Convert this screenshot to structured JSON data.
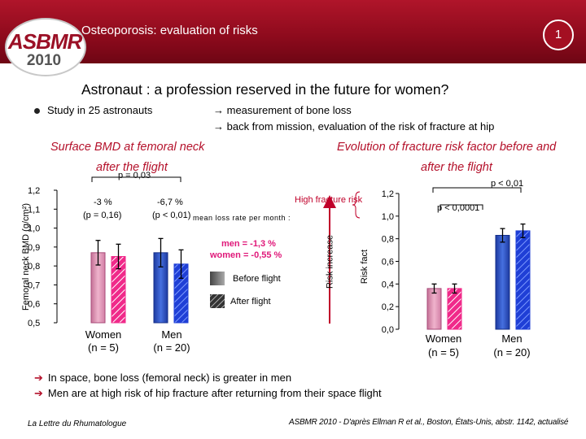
{
  "header": {
    "logo_text": "ASBMR",
    "logo_year": "2010",
    "title": "Osteoporosis: evaluation of risks",
    "page_number": "1"
  },
  "main": {
    "title": "Astronaut : a profession reserved in the future for women?",
    "bullet": "Study in 25 astronauts",
    "arrow_lines": [
      "→ measurement of bone loss",
      "→ back from mission, evaluation of the risk of fracture at hip"
    ]
  },
  "left_section": {
    "title_line1": "Surface BMD at femoral neck",
    "title_line2": "after the flight",
    "y_axis_label": "Femoral neck BMD (g/cm²)",
    "p_top": "p = 0,03",
    "women_change": "-3 %",
    "women_p": "(p = 0,16)",
    "men_change": "-6,7 %",
    "men_p": "(p < 0,01)",
    "mean_label": "mean loss rate per month :",
    "men_rate": "men = -1,3 %",
    "women_rate": "women = -0,55 %",
    "legend_before": "Before flight",
    "legend_after": "After flight",
    "category_women": "Women",
    "category_women_n": "(n = 5)",
    "category_men": "Men",
    "category_men_n": "(n = 20)"
  },
  "right_section": {
    "title_line1": "Evolution of fracture risk factor before and",
    "title_line2": "after the flight",
    "high_risk_label": "High fracture risk",
    "risk_increase_label": "Risk increase",
    "y_axis_label": "Risk fact",
    "p_top": "p < 0,01",
    "p_men": "p < 0,0001",
    "category_women": "Women",
    "category_women_n": "(n = 5)",
    "category_men": "Men",
    "category_men_n": "(n = 20)"
  },
  "chart_data": [
    {
      "type": "bar",
      "title": "Surface BMD at femoral neck after the flight",
      "ylabel": "Femoral neck BMD (g/cm²)",
      "ylim": [
        0.5,
        1.2
      ],
      "y_ticks": [
        "1,2",
        "1,1",
        "1,0",
        "0,9",
        "0,8",
        "0,7",
        "0,6",
        "0,5"
      ],
      "categories": [
        "Women (n = 5)",
        "Men (n = 20)"
      ],
      "series": [
        {
          "name": "Before flight",
          "values": [
            0.87,
            0.87
          ],
          "errors": [
            0.065,
            0.075
          ]
        },
        {
          "name": "After flight",
          "values": [
            0.85,
            0.81
          ],
          "errors": [
            0.065,
            0.075
          ]
        }
      ]
    },
    {
      "type": "bar",
      "title": "Evolution of fracture risk factor before and after the flight",
      "ylabel": "Risk fact",
      "ylim": [
        0.0,
        1.2
      ],
      "y_ticks": [
        "1,2",
        "1,0",
        "0,8",
        "0,6",
        "0,4",
        "0,2",
        "0,0"
      ],
      "categories": [
        "Women (n = 5)",
        "Men (n = 20)"
      ],
      "series": [
        {
          "name": "Before flight",
          "values": [
            0.36,
            0.83
          ],
          "errors": [
            0.04,
            0.06
          ]
        },
        {
          "name": "After flight",
          "values": [
            0.36,
            0.87
          ],
          "errors": [
            0.04,
            0.06
          ]
        }
      ]
    }
  ],
  "colors": {
    "banner": "#9b1026",
    "accent_red": "#b4102a",
    "women_before": "#e7a1c0",
    "women_after": "#f02a8a",
    "men_before": "#2f55c6",
    "men_after": "#1f3fd6"
  },
  "conclusions": [
    "In space, bone loss (femoral neck) is greater in men",
    "Men are at high risk of hip fracture after returning from their space flight"
  ],
  "footer": {
    "left": "La Lettre du Rhumatologue",
    "right": "ASBMR 2010 - D'après Ellman R et al., Boston, États-Unis, abstr. 1142, actualisé"
  }
}
